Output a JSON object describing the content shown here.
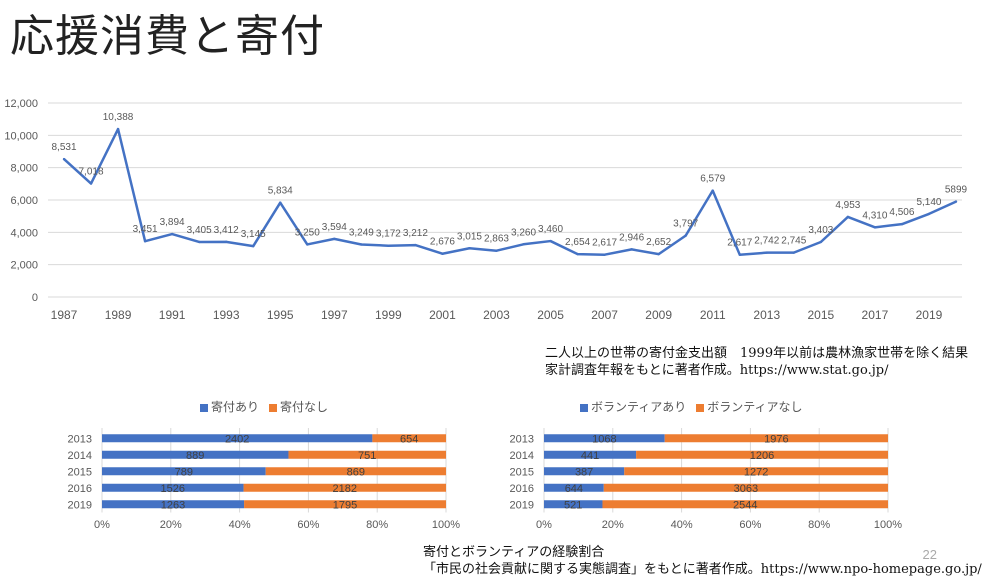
{
  "title": "応援消費と寄付",
  "page_number": "22",
  "sources": {
    "line_1": "二人以上の世帯の寄付金支出額　1999年以前は農林漁家世帯を除く結果",
    "line_2": "家計調査年報をもとに著者作成。https://www.stat.go.jp/",
    "bottom_1": "寄付とボランティアの経験割合",
    "bottom_2": "「市民の社会貢献に関する実態調査」をもとに著者作成。https://www.npo-homepage.go.jp/"
  },
  "colors": {
    "blue": "#4472c4",
    "orange": "#ed7d31",
    "grid": "#d9d9d9",
    "axis_text": "#595959"
  },
  "chart_data": [
    {
      "type": "line",
      "x": [
        1987,
        1988,
        1989,
        1990,
        1991,
        1992,
        1993,
        1994,
        1995,
        1996,
        1997,
        1998,
        1999,
        2000,
        2001,
        2002,
        2003,
        2004,
        2005,
        2006,
        2007,
        2008,
        2009,
        2010,
        2011,
        2012,
        2013,
        2014,
        2015,
        2016,
        2017,
        2018,
        2019,
        2020
      ],
      "values": [
        8531,
        7018,
        10388,
        3451,
        3894,
        3405,
        3412,
        3145,
        5834,
        3250,
        3594,
        3249,
        3172,
        3212,
        2676,
        3015,
        2863,
        3260,
        3460,
        2654,
        2617,
        2946,
        2652,
        3797,
        6579,
        2617,
        2742,
        2745,
        3403,
        4953,
        4310,
        4506,
        5140,
        5899
      ],
      "data_labels": [
        "8,531",
        "7,018",
        "10,388",
        "3,451",
        "3,894",
        "3,405",
        "3,412",
        "3,145",
        "5,834",
        "3,250",
        "3,594",
        "3,249",
        "3,172",
        "3,212",
        "2,676",
        "3,015",
        "2,863",
        "3,260",
        "3,460",
        "2,654",
        "2,617",
        "2,946",
        "2,652",
        "3,797",
        "6,579",
        "2,617",
        "2,742",
        "2,745",
        "3,403",
        "4,953",
        "4,310",
        "4,506",
        "5,140",
        "5899"
      ],
      "x_tick_labels": [
        "1987",
        "1989",
        "1991",
        "1993",
        "1995",
        "1997",
        "1999",
        "2001",
        "2003",
        "2005",
        "2007",
        "2009",
        "2011",
        "2013",
        "2015",
        "2017",
        "2019"
      ],
      "y_tick_labels": [
        "0",
        "2,000",
        "4,000",
        "6,000",
        "8,000",
        "10,000",
        "12,000"
      ],
      "ylim": [
        0,
        12000
      ],
      "grid": true
    },
    {
      "type": "bar",
      "orientation": "horizontal-stacked-100",
      "categories": [
        "2013",
        "2014",
        "2015",
        "2016",
        "2019"
      ],
      "series": [
        {
          "name": "寄付あり",
          "values": [
            2402,
            889,
            789,
            1526,
            1263
          ]
        },
        {
          "name": "寄付なし",
          "values": [
            654,
            751,
            869,
            2182,
            1795
          ]
        }
      ],
      "x_tick_labels": [
        "0%",
        "20%",
        "40%",
        "60%",
        "80%",
        "100%"
      ],
      "legend": "top"
    },
    {
      "type": "bar",
      "orientation": "horizontal-stacked-100",
      "categories": [
        "2013",
        "2014",
        "2015",
        "2016",
        "2019"
      ],
      "series": [
        {
          "name": "ボランティアあり",
          "values": [
            1068,
            441,
            387,
            644,
            521
          ]
        },
        {
          "name": "ボランティアなし",
          "values": [
            1976,
            1206,
            1272,
            3063,
            2544
          ]
        }
      ],
      "x_tick_labels": [
        "0%",
        "20%",
        "40%",
        "60%",
        "80%",
        "100%"
      ],
      "legend": "top"
    }
  ]
}
